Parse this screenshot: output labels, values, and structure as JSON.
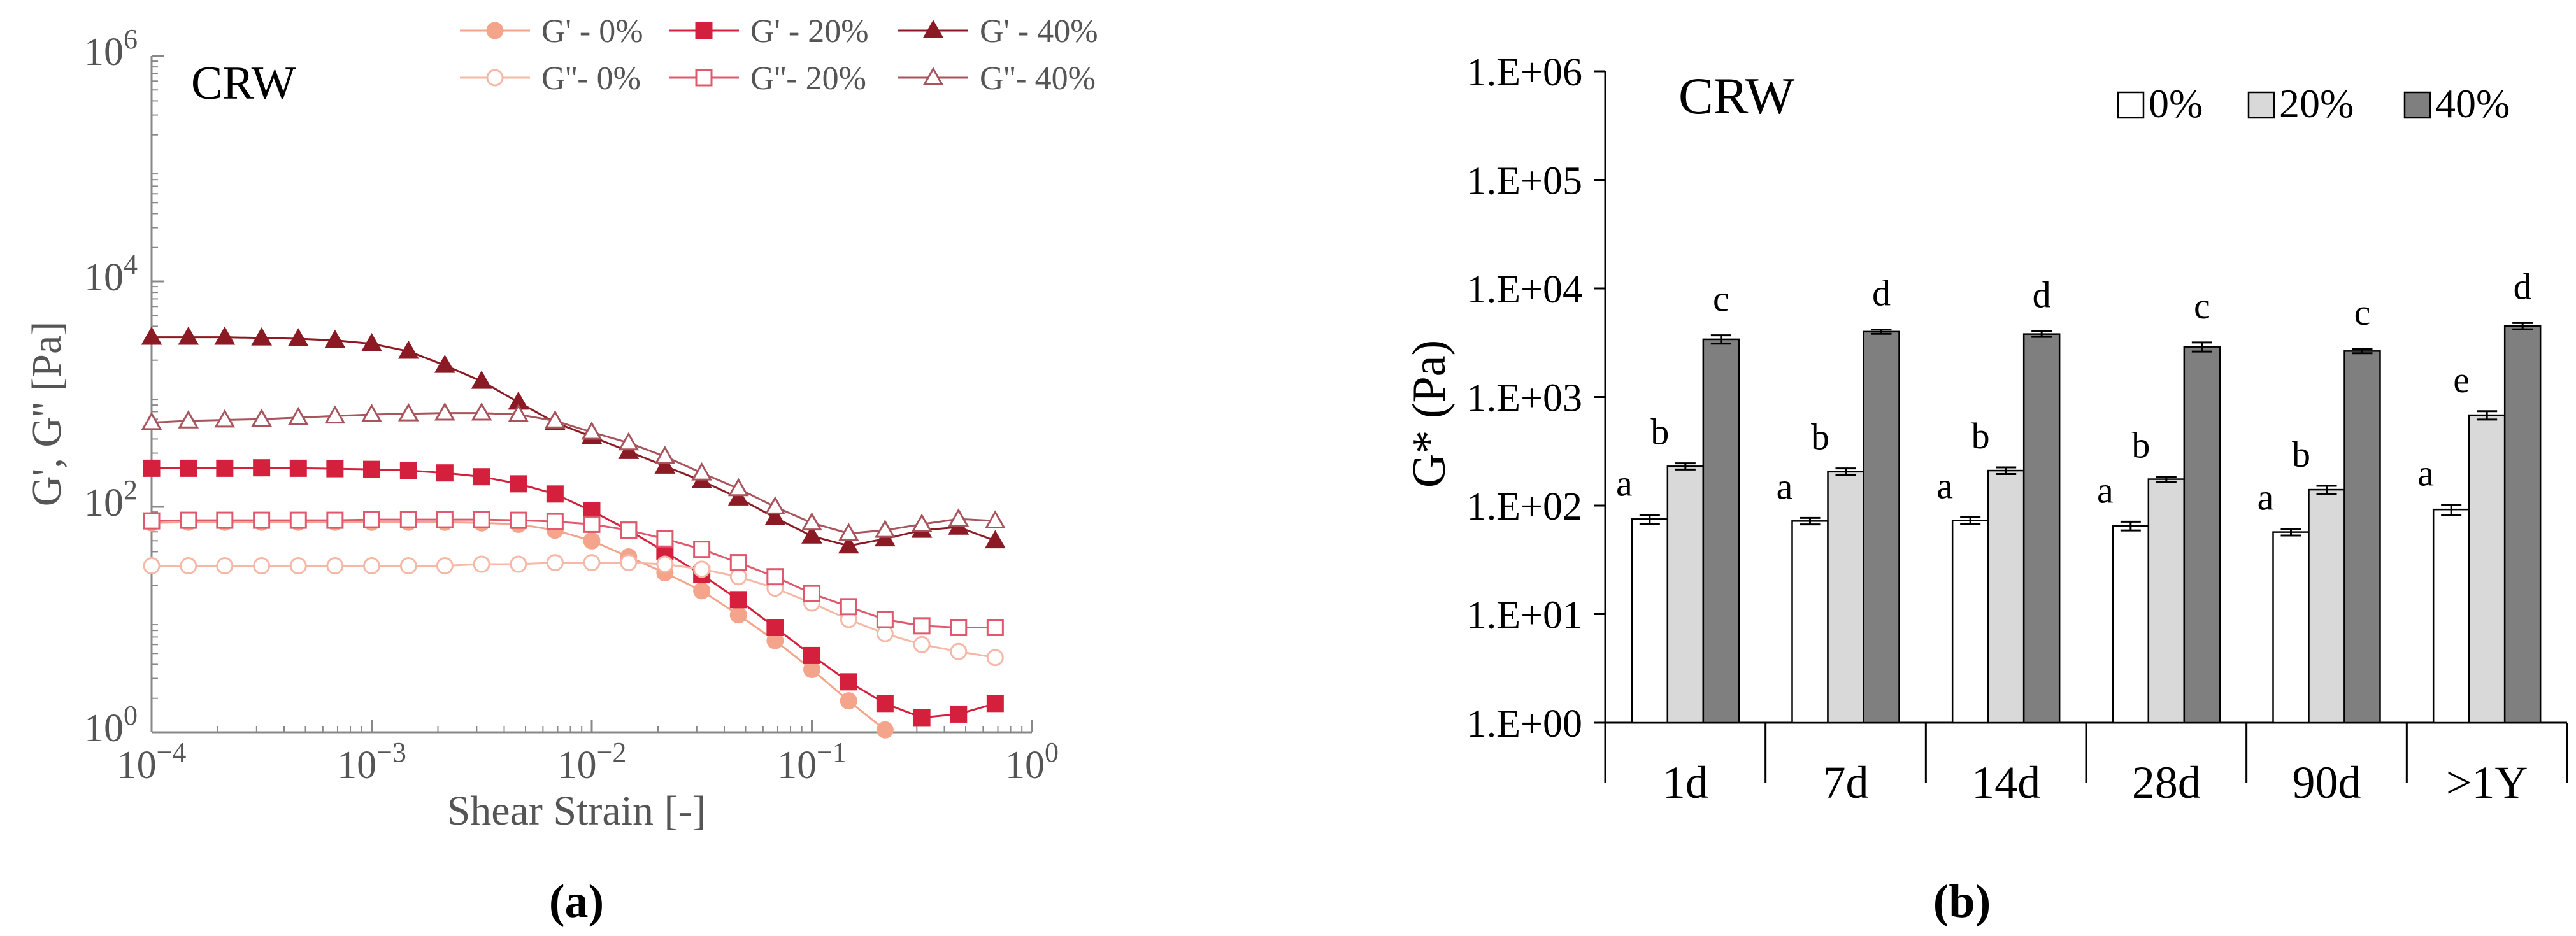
{
  "chart_data": [
    {
      "type": "line",
      "panel_label": "(a)",
      "title": "CRW",
      "xlabel": "Shear Strain [-]",
      "ylabel": "G', G'' [Pa]",
      "xscale": "log",
      "yscale": "log",
      "xlim": [
        0.0001,
        1
      ],
      "ylim": [
        1,
        1000000
      ],
      "xticks": [
        {
          "value": 0.0001,
          "base": "10",
          "exp": "−4"
        },
        {
          "value": 0.001,
          "base": "10",
          "exp": "−3"
        },
        {
          "value": 0.01,
          "base": "10",
          "exp": "−2"
        },
        {
          "value": 0.1,
          "base": "10",
          "exp": "−1"
        },
        {
          "value": 1,
          "base": "10",
          "exp": "0"
        }
      ],
      "yticks": [
        {
          "value": 1,
          "base": "10",
          "exp": "0"
        },
        {
          "value": 100,
          "base": "10",
          "exp": "2"
        },
        {
          "value": 10000,
          "base": "10",
          "exp": "4"
        },
        {
          "value": 1000000,
          "base": "10",
          "exp": "6"
        }
      ],
      "grid": false,
      "legend_position": "top",
      "x": [
        0.0001,
        0.000147,
        0.000215,
        0.000316,
        0.000464,
        0.000681,
        0.001,
        0.00147,
        0.00215,
        0.00316,
        0.00464,
        0.00681,
        0.01,
        0.0147,
        0.0215,
        0.0316,
        0.0464,
        0.0681,
        0.1,
        0.147,
        0.215,
        0.316,
        0.464,
        0.681
      ],
      "series": [
        {
          "name": "G' - 0%",
          "marker": "circle",
          "filled": true,
          "color": "#f4a48a",
          "values": [
            72,
            73,
            73,
            73,
            73,
            73,
            73,
            73,
            73,
            72,
            70,
            62,
            50,
            36,
            26,
            18,
            11,
            6.5,
            3.6,
            1.9,
            1.05,
            null,
            null,
            null
          ]
        },
        {
          "name": "G' - 20%",
          "marker": "square",
          "filled": true,
          "color": "#d4203c",
          "values": [
            220,
            220,
            220,
            222,
            220,
            218,
            215,
            210,
            200,
            185,
            160,
            130,
            92,
            62,
            40,
            25,
            15,
            8.5,
            4.8,
            2.8,
            1.8,
            1.35,
            1.45,
            1.8
          ]
        },
        {
          "name": "G' - 40%",
          "marker": "triangle",
          "filled": true,
          "color": "#8b1a24",
          "values": [
            3200,
            3200,
            3200,
            3150,
            3100,
            3000,
            2800,
            2400,
            1800,
            1300,
            850,
            560,
            420,
            310,
            230,
            170,
            120,
            80,
            55,
            45,
            52,
            62,
            66,
            50
          ]
        },
        {
          "name": "G''- 0%",
          "marker": "circle",
          "filled": false,
          "color": "#f6b8a6",
          "values": [
            30,
            30,
            30,
            30,
            30,
            30,
            30,
            30,
            30,
            31,
            31,
            32,
            32,
            32,
            31,
            28,
            24,
            19,
            14,
            10,
            7.5,
            6,
            5.2,
            4.6
          ]
        },
        {
          "name": "G''- 20%",
          "marker": "square",
          "filled": false,
          "color": "#e0586d",
          "values": [
            75,
            76,
            76,
            76,
            76,
            76,
            77,
            77,
            77,
            77,
            76,
            74,
            70,
            62,
            52,
            42,
            32,
            24,
            17,
            13,
            10,
            8.8,
            8.5,
            8.5
          ]
        },
        {
          "name": "G''- 40%",
          "marker": "triangle",
          "filled": false,
          "color": "#a8545c",
          "values": [
            560,
            580,
            590,
            600,
            620,
            640,
            660,
            670,
            680,
            680,
            660,
            580,
            460,
            370,
            280,
            200,
            145,
            100,
            72,
            58,
            62,
            70,
            78,
            75
          ]
        }
      ]
    },
    {
      "type": "bar",
      "panel_label": "(b)",
      "title": "CRW",
      "xlabel": "",
      "ylabel": "G* (Pa)",
      "yscale": "log",
      "ylim": [
        1,
        1000000
      ],
      "ytick_labels": [
        "1.E+00",
        "1.E+01",
        "1.E+02",
        "1.E+03",
        "1.E+04",
        "1.E+05",
        "1.E+06"
      ],
      "grid": false,
      "legend_position": "top-right",
      "categories": [
        "1d",
        "7d",
        "14d",
        "28d",
        "90d",
        ">1Y"
      ],
      "series": [
        {
          "name": "0%",
          "color": "#ffffff",
          "values": [
            75,
            72,
            73,
            65,
            57,
            92
          ],
          "errors": [
            7,
            5,
            5,
            6,
            4,
            10
          ],
          "letters": [
            "a",
            "a",
            "a",
            "a",
            "a",
            "a"
          ]
        },
        {
          "name": "20%",
          "color": "#d9d9d9",
          "values": [
            230,
            205,
            210,
            175,
            140,
            680
          ],
          "errors": [
            15,
            15,
            15,
            10,
            12,
            60
          ],
          "letters": [
            "b",
            "b",
            "b",
            "b",
            "b",
            "e"
          ]
        },
        {
          "name": "40%",
          "color": "#7f7f7f",
          "values": [
            3400,
            4000,
            3800,
            2900,
            2650,
            4500
          ],
          "errors": [
            300,
            180,
            220,
            280,
            120,
            300
          ],
          "letters": [
            "c",
            "d",
            "d",
            "c",
            "c",
            "d"
          ]
        }
      ]
    }
  ]
}
